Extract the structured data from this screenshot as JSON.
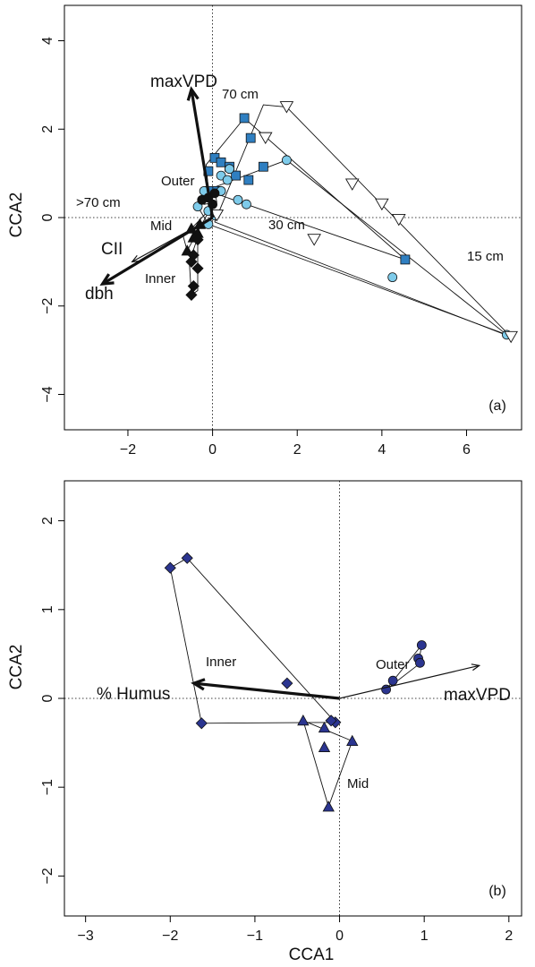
{
  "chart_data": [
    {
      "type": "scatter",
      "panel_label": "(a)",
      "xlabel": "",
      "ylabel": "CCA2",
      "xlim": [
        -3.5,
        7.3
      ],
      "ylim": [
        -4.8,
        4.8
      ],
      "xticks": [
        "-2",
        "0",
        "2",
        "4",
        "6"
      ],
      "xtick_values": [
        -2,
        0,
        2,
        4,
        6
      ],
      "yticks": [
        "-4",
        "-2",
        "0",
        "2",
        "4"
      ],
      "ytick_values": [
        -4,
        -2,
        0,
        2,
        4
      ],
      "zero_lines": true,
      "groups": [
        {
          "label": "70 cm",
          "marker": "square",
          "color": "#2f7fc1",
          "hull": [
            [
              -0.15,
              1.2
            ],
            [
              0.75,
              2.25
            ],
            [
              4.55,
              -0.95
            ],
            [
              -0.1,
              0.6
            ]
          ],
          "points": [
            [
              0.75,
              2.25
            ],
            [
              0.9,
              1.8
            ],
            [
              0.05,
              1.35
            ],
            [
              0.2,
              1.25
            ],
            [
              -0.1,
              1.05
            ],
            [
              0.4,
              1.15
            ],
            [
              0.55,
              0.95
            ],
            [
              0.85,
              0.85
            ],
            [
              1.2,
              1.15
            ],
            [
              0.1,
              0.6
            ],
            [
              -0.1,
              0.6
            ],
            [
              4.55,
              -0.95
            ]
          ]
        },
        {
          "label": "30 cm",
          "marker": "circle",
          "color": "#7ecbea",
          "hull": [
            [
              -0.2,
              0.6
            ],
            [
              1.75,
              1.3
            ],
            [
              6.95,
              -2.65
            ],
            [
              -0.1,
              -0.15
            ],
            [
              -0.35,
              0.25
            ]
          ],
          "points": [
            [
              1.75,
              1.3
            ],
            [
              0.4,
              1.1
            ],
            [
              0.2,
              0.95
            ],
            [
              0.35,
              0.85
            ],
            [
              0.2,
              0.6
            ],
            [
              -0.2,
              0.6
            ],
            [
              -0.35,
              0.25
            ],
            [
              -0.1,
              0.15
            ],
            [
              0.6,
              0.4
            ],
            [
              0.8,
              0.3
            ],
            [
              0.05,
              0.05
            ],
            [
              -0.1,
              -0.15
            ],
            [
              4.25,
              -1.35
            ],
            [
              6.95,
              -2.65
            ]
          ]
        },
        {
          "label": "15 cm",
          "marker": "triangle-down",
          "color": "#ffffff",
          "hull": [
            [
              1.2,
              2.55
            ],
            [
              1.75,
              2.5
            ],
            [
              7.05,
              -2.7
            ],
            [
              0.05,
              -0.1
            ]
          ],
          "points": [
            [
              1.75,
              2.5
            ],
            [
              1.25,
              1.8
            ],
            [
              3.3,
              0.75
            ],
            [
              4.0,
              0.3
            ],
            [
              4.4,
              -0.05
            ],
            [
              2.4,
              -0.5
            ],
            [
              0.1,
              0.05
            ],
            [
              7.05,
              -2.7
            ]
          ]
        },
        {
          "label": ">70 cm",
          "marker": "circle",
          "color": "#111111",
          "hull": [
            [
              -0.25,
              0.4
            ],
            [
              0.05,
              0.6
            ],
            [
              0.1,
              0.35
            ],
            [
              -0.2,
              0.3
            ]
          ],
          "points": [
            [
              -0.25,
              0.4
            ],
            [
              -0.1,
              0.45
            ],
            [
              0.05,
              0.55
            ],
            [
              0.0,
              0.3
            ]
          ]
        },
        {
          "label": "Mid",
          "marker": "triangle",
          "color": "#111111",
          "hull": [
            [
              -0.55,
              -0.3
            ],
            [
              -0.05,
              0.2
            ],
            [
              -0.6,
              -0.75
            ],
            [
              -0.7,
              -0.4
            ]
          ],
          "points": [
            [
              -0.5,
              -0.25
            ],
            [
              -0.35,
              -0.35
            ],
            [
              -0.3,
              -0.15
            ],
            [
              -0.6,
              -0.75
            ],
            [
              -0.45,
              -0.45
            ]
          ]
        },
        {
          "label": "Inner",
          "marker": "diamond",
          "color": "#111111",
          "hull": [
            [
              -0.35,
              -0.45
            ],
            [
              -0.35,
              -1.65
            ],
            [
              -0.5,
              -1.75
            ],
            [
              -0.55,
              -1.0
            ]
          ],
          "points": [
            [
              -0.35,
              -0.5
            ],
            [
              -0.45,
              -0.85
            ],
            [
              -0.5,
              -1.0
            ],
            [
              -0.35,
              -1.15
            ],
            [
              -0.45,
              -1.55
            ],
            [
              -0.5,
              -1.75
            ]
          ]
        }
      ],
      "vectors": [
        {
          "label": "maxVPD",
          "to": [
            -0.5,
            2.9
          ],
          "bold": true
        },
        {
          "label": "CII",
          "to": [
            -1.9,
            -1.0
          ],
          "bold": false
        },
        {
          "label": "dbh",
          "to": [
            -2.6,
            -1.5
          ],
          "bold": true
        }
      ],
      "annotations": [
        "70 cm",
        "30 cm",
        "15 cm",
        ">70 cm",
        "Outer",
        "Mid",
        "Inner"
      ]
    },
    {
      "type": "scatter",
      "panel_label": "(b)",
      "xlabel": "CCA1",
      "ylabel": "CCA2",
      "xlim": [
        -3.25,
        2.15
      ],
      "ylim": [
        -2.45,
        2.45
      ],
      "xticks": [
        "-3",
        "-2",
        "-1",
        "0",
        "1",
        "2"
      ],
      "xtick_values": [
        -3,
        -2,
        -1,
        0,
        1,
        2
      ],
      "yticks": [
        "-2",
        "-1",
        "0",
        "1",
        "2"
      ],
      "ytick_values": [
        -2,
        -1,
        0,
        1,
        2
      ],
      "zero_lines": true,
      "groups": [
        {
          "label": "Inner",
          "marker": "diamond",
          "color": "#2b3590",
          "hull": [
            [
              -1.8,
              1.58
            ],
            [
              -2.0,
              1.47
            ],
            [
              -1.63,
              -0.28
            ],
            [
              -0.05,
              -0.27
            ]
          ],
          "points": [
            [
              -1.8,
              1.58
            ],
            [
              -2.0,
              1.47
            ],
            [
              -0.62,
              0.17
            ],
            [
              -0.05,
              -0.27
            ],
            [
              -0.1,
              -0.25
            ],
            [
              -1.63,
              -0.28
            ]
          ]
        },
        {
          "label": "Mid",
          "marker": "triangle",
          "color": "#2b3590",
          "hull": [
            [
              -0.43,
              -0.25
            ],
            [
              0.15,
              -0.48
            ],
            [
              -0.13,
              -1.22
            ]
          ],
          "points": [
            [
              -0.43,
              -0.25
            ],
            [
              -0.18,
              -0.33
            ],
            [
              -0.18,
              -0.55
            ],
            [
              0.15,
              -0.48
            ],
            [
              -0.13,
              -1.22
            ]
          ]
        },
        {
          "label": "Outer",
          "marker": "circle",
          "color": "#2b3590",
          "hull": [
            [
              0.97,
              0.6
            ],
            [
              0.93,
              0.38
            ],
            [
              0.55,
              0.1
            ]
          ],
          "points": [
            [
              0.97,
              0.6
            ],
            [
              0.93,
              0.45
            ],
            [
              0.95,
              0.4
            ],
            [
              0.63,
              0.2
            ],
            [
              0.55,
              0.1
            ]
          ]
        }
      ],
      "vectors": [
        {
          "label": "% Humus",
          "to": [
            -1.72,
            0.17
          ],
          "bold": true
        },
        {
          "label": "maxVPD",
          "to": [
            1.65,
            0.37
          ],
          "bold": false
        }
      ],
      "annotations": [
        "Inner",
        "Outer",
        "Mid"
      ]
    }
  ]
}
